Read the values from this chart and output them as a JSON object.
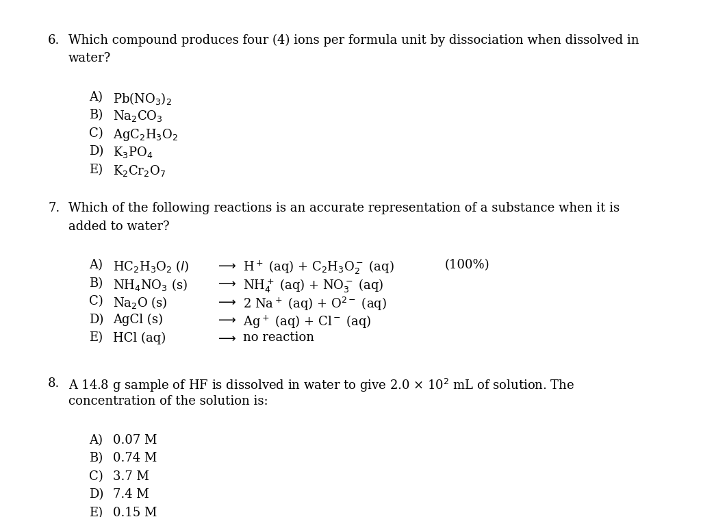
{
  "background_color": "#ffffff",
  "text_color": "#000000",
  "font_size": 13.0,
  "q6_choices": [
    {
      "label": "A)",
      "text": "Pb(NO$_3$)$_2$"
    },
    {
      "label": "B)",
      "text": "Na$_2$CO$_3$"
    },
    {
      "label": "C)",
      "text": "AgC$_2$H$_3$O$_2$"
    },
    {
      "label": "D)",
      "text": "K$_3$PO$_4$"
    },
    {
      "label": "E)",
      "text": "K$_2$Cr$_2$O$_7$"
    }
  ],
  "q7_choices": [
    {
      "label": "A)",
      "left": "HC$_2$H$_3$O$_2$ ($l$)",
      "right": "H$^+$ (aq) + C$_2$H$_3$O$_2^-$ (aq)",
      "note": "(100%)"
    },
    {
      "label": "B)",
      "left": "NH$_4$NO$_3$ (s)",
      "right": "NH$_4^+$ (aq) + NO$_3^-$ (aq)",
      "note": ""
    },
    {
      "label": "C)",
      "left": "Na$_2$O (s)",
      "right": "2 Na$^+$ (aq) + O$^{2-}$ (aq)",
      "note": ""
    },
    {
      "label": "D)",
      "left": "AgCl (s)",
      "right": "Ag$^+$ (aq) + Cl$^-$ (aq)",
      "note": ""
    },
    {
      "label": "E)",
      "left": "HCl (aq)",
      "right": "no reaction",
      "note": ""
    }
  ],
  "q8_choices": [
    {
      "label": "A)",
      "text": "0.07 M"
    },
    {
      "label": "B)",
      "text": "0.74 M"
    },
    {
      "label": "C)",
      "text": "3.7 M"
    },
    {
      "label": "D)",
      "text": "7.4 M"
    },
    {
      "label": "E)",
      "text": "0.15 M"
    }
  ],
  "q6_line1": "Which compound produces four (4) ions per formula unit by dissociation when dissolved in",
  "q6_line2": "water?",
  "q7_line1": "Which of the following reactions is an accurate representation of a substance when it is",
  "q7_line2": "added to water?",
  "q8_line1": "A 14.8 g sample of HF is dissolved in water to give 2.0 × 10$^2$ mL of solution. The",
  "q8_line2": "concentration of the solution is:"
}
